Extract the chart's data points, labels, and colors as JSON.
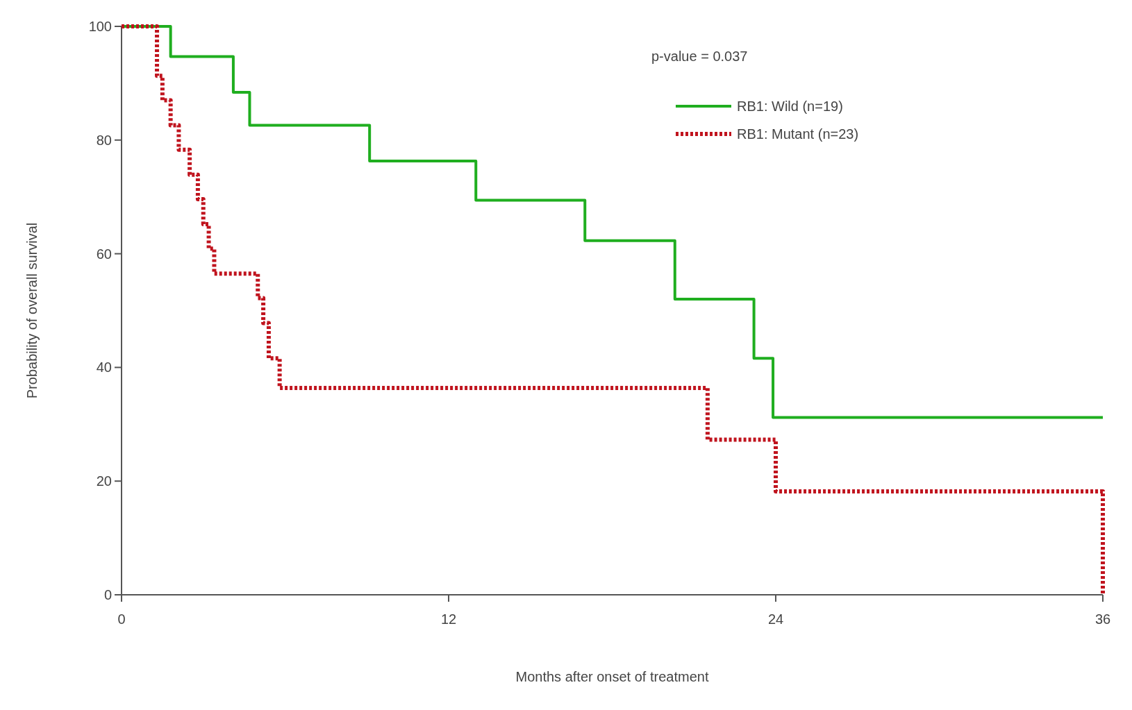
{
  "chart_data": {
    "type": "step",
    "xlabel": "Months after onset of treatment",
    "ylabel": "Probability of overall survival",
    "annotations": [
      "p-value = 0.037"
    ],
    "xlim": [
      0,
      36
    ],
    "xticks": [
      0,
      12,
      24,
      36
    ],
    "ylim": [
      0,
      100
    ],
    "yticks": [
      0,
      20,
      40,
      60,
      80,
      100
    ],
    "grid": false,
    "legend": "top right",
    "series": [
      {
        "name": "RB1: Wild (n=19)",
        "color": "#1fae1f",
        "line_style": "solid",
        "x": [
          0,
          1.8,
          4.1,
          4.7,
          9.1,
          13.0,
          17.0,
          20.3,
          23.2,
          23.9,
          36
        ],
        "values": [
          100,
          94.7,
          88.4,
          82.6,
          76.3,
          69.4,
          62.3,
          52.0,
          41.6,
          31.2,
          31.2
        ]
      },
      {
        "name": "RB1: Mutant (n=23)",
        "color": "#c0141e",
        "line_style": "dotted",
        "x": [
          0,
          1.3,
          1.5,
          1.8,
          2.1,
          2.5,
          2.8,
          3.0,
          3.2,
          3.4,
          5.0,
          5.2,
          5.4,
          5.8,
          21.5,
          24.0,
          36
        ],
        "values": [
          100,
          91.3,
          87.0,
          82.6,
          78.3,
          73.9,
          69.6,
          65.2,
          60.9,
          56.5,
          52.2,
          47.8,
          41.6,
          36.4,
          27.3,
          18.2,
          0
        ]
      }
    ]
  }
}
